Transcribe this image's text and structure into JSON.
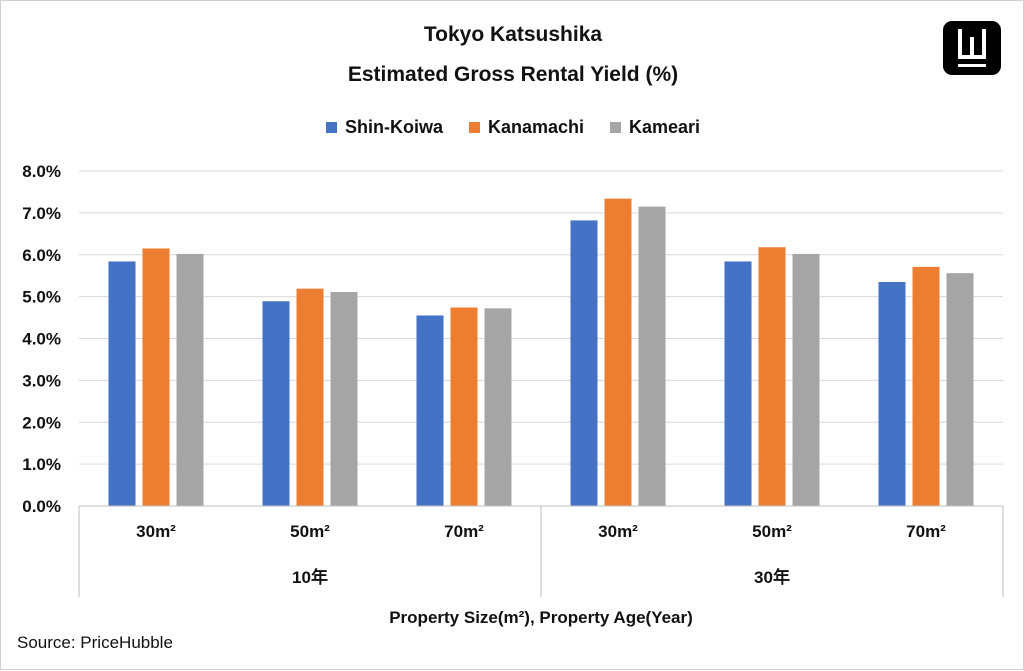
{
  "title_lines": [
    "Tokyo Katsushika",
    "Estimated Gross Rental Yield (%)"
  ],
  "source": "Source: PriceHubble",
  "logo": {
    "icon": "w-logo-icon",
    "color": "#000000"
  },
  "chart_data": {
    "type": "bar",
    "title": "Tokyo Katsushika Estimated Gross Rental Yield (%)",
    "xlabel": "Property Size(m²), Property Age(Year)",
    "ylabel": "",
    "ylim": [
      0,
      8
    ],
    "ytick_labels": [
      "0.0%",
      "1.0%",
      "2.0%",
      "3.0%",
      "4.0%",
      "5.0%",
      "6.0%",
      "7.0%",
      "8.0%"
    ],
    "grid": true,
    "legend_position": "top",
    "categories": [
      "30m²",
      "50m²",
      "70m²",
      "30m²",
      "50m²",
      "70m²"
    ],
    "groups": [
      {
        "label": "10年",
        "categories": [
          "30m²",
          "50m²",
          "70m²"
        ]
      },
      {
        "label": "30年",
        "categories": [
          "30m²",
          "50m²",
          "70m²"
        ]
      }
    ],
    "series": [
      {
        "name": "Shin-Koiwa",
        "color": "#4472C4",
        "values": [
          5.84,
          4.89,
          4.55,
          6.82,
          5.84,
          5.35
        ]
      },
      {
        "name": "Kanamachi",
        "color": "#ED7D31",
        "values": [
          6.15,
          5.19,
          4.74,
          7.34,
          6.18,
          5.71
        ]
      },
      {
        "name": "Kameari",
        "color": "#A5A5A5",
        "values": [
          6.02,
          5.11,
          4.72,
          7.15,
          6.02,
          5.56
        ]
      }
    ]
  }
}
